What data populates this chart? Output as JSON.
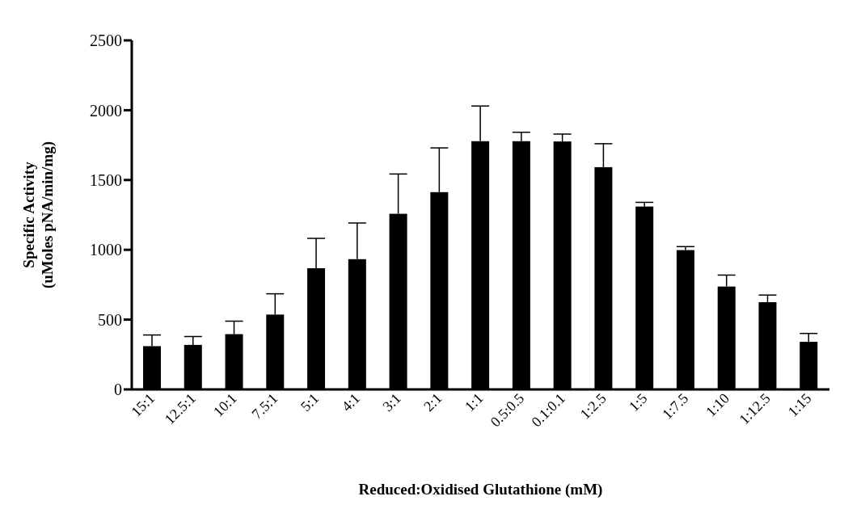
{
  "chart_data": {
    "type": "bar",
    "xlabel": "Reduced:Oxidised Glutathione (mM)",
    "ylabel": "Specific Activity\n(uMoles pNA/min/mg)",
    "categories": [
      "15:1",
      "12.5:1",
      "10:1",
      "7.5:1",
      "5:1",
      "4:1",
      "3:1",
      "2:1",
      "1:1",
      "0.5:0.5",
      "0.1:0.1",
      "1:2.5",
      "1:5",
      "1:7.5",
      "1:10",
      "1:12.5",
      "1:15"
    ],
    "values": [
      310,
      319,
      396,
      536,
      868,
      933,
      1258,
      1413,
      1778,
      1778,
      1776,
      1592,
      1310,
      998,
      737,
      625,
      341
    ],
    "errors": [
      [
        310,
        390
      ],
      [
        319,
        379
      ],
      [
        396,
        489
      ],
      [
        536,
        685
      ],
      [
        868,
        1082
      ],
      [
        933,
        1192
      ],
      [
        1258,
        1543
      ],
      [
        1413,
        1730
      ],
      [
        1778,
        2030
      ],
      [
        1778,
        1842
      ],
      [
        1776,
        1829
      ],
      [
        1592,
        1760
      ],
      [
        1310,
        1340
      ],
      [
        998,
        1023
      ],
      [
        737,
        819
      ],
      [
        625,
        676
      ],
      [
        341,
        401
      ]
    ],
    "color": "#000000",
    "ylim": [
      0,
      2500
    ],
    "yticks": [
      0,
      500,
      1000,
      1500,
      2000,
      2500
    ],
    "grid": false
  }
}
